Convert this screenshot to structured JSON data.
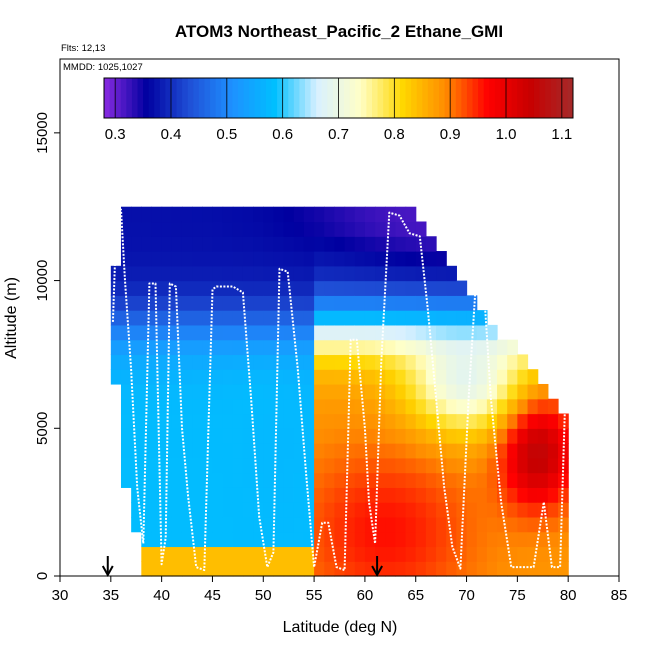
{
  "chart_data": {
    "type": "heatmap",
    "title": "ATOM3 Northeast_Pacific_2 Ethane_GMI",
    "annotations": [
      "Flts: 12,13",
      "MMDD: 1025,1027"
    ],
    "xlabel": "Latitude (deg N)",
    "ylabel": "Altitude (m)",
    "xlim": [
      30,
      85
    ],
    "ylim": [
      0,
      17500
    ],
    "x_ticks": [
      "30",
      "35",
      "40",
      "45",
      "50",
      "55",
      "60",
      "65",
      "70",
      "75",
      "80",
      "85"
    ],
    "y_ticks": [
      "0",
      "5000",
      "10000",
      "15000"
    ],
    "colorbar": {
      "min": 0.28,
      "max": 1.12,
      "tick_labels": [
        "0.3",
        "0.4",
        "0.5",
        "0.6",
        "0.7",
        "0.8",
        "0.9",
        "1.0",
        "1.1"
      ],
      "colors": [
        "#8a2be2",
        "#0000a0",
        "#1f4fd6",
        "#1e90ff",
        "#00bfff",
        "#d8f0ff",
        "#ffffc8",
        "#ffd700",
        "#ff8c00",
        "#ff0000",
        "#c80000",
        "#a52a2a"
      ]
    },
    "grid": false,
    "arrows_at_latitude": [
      34.7,
      61.2
    ],
    "field_regions": [
      {
        "region": "upper troposphere 9000-12500 m",
        "value": 0.38
      },
      {
        "region": "mid troposphere 38-55N 2000-8000 m",
        "value": 0.58
      },
      {
        "region": "lower troposphere 55-80N 0-6000 m",
        "value": 0.93
      },
      {
        "region": "boundary layer 40-55N 0-1000 m",
        "value": 0.84
      },
      {
        "region": "maximum near 77N 4000 m",
        "value": 1.08
      }
    ],
    "flight_track": {
      "lat": [
        35.2,
        35.6,
        36.0,
        36.4,
        37.0,
        37.6,
        38.2,
        38.8,
        39.4,
        40.0,
        40.4,
        40.8,
        41.4,
        42.0,
        42.6,
        43.4,
        44.2,
        45.0,
        45.4,
        46.0,
        47.0,
        48.0,
        48.8,
        49.6,
        50.4,
        51.0,
        51.6,
        52.4,
        53.4,
        54.2,
        55.0,
        55.8,
        56.4,
        57.2,
        58.0,
        58.6,
        59.2,
        60.0,
        60.4,
        61.0,
        61.6,
        62.4,
        63.4,
        64.4,
        65.4,
        66.2,
        67.0,
        67.8,
        68.6,
        69.4,
        70.2,
        71.0,
        71.6,
        72.4,
        73.4,
        74.4,
        75.4,
        76.6,
        77.6,
        78.4,
        79.2,
        79.8
      ],
      "alt": [
        8600,
        12500,
        12400,
        10000,
        7000,
        3000,
        1100,
        9900,
        9900,
        400,
        1300,
        9900,
        9800,
        5000,
        2700,
        300,
        200,
        9700,
        9800,
        9800,
        9800,
        9600,
        6000,
        2000,
        300,
        800,
        10400,
        10300,
        7000,
        3500,
        300,
        1800,
        1800,
        300,
        200,
        8000,
        8000,
        5000,
        2500,
        1100,
        7200,
        12300,
        12200,
        11600,
        11500,
        9000,
        6000,
        3000,
        1000,
        250,
        6000,
        10400,
        10300,
        6000,
        2500,
        300,
        300,
        300,
        2500,
        300,
        300,
        7000
      ]
    }
  }
}
